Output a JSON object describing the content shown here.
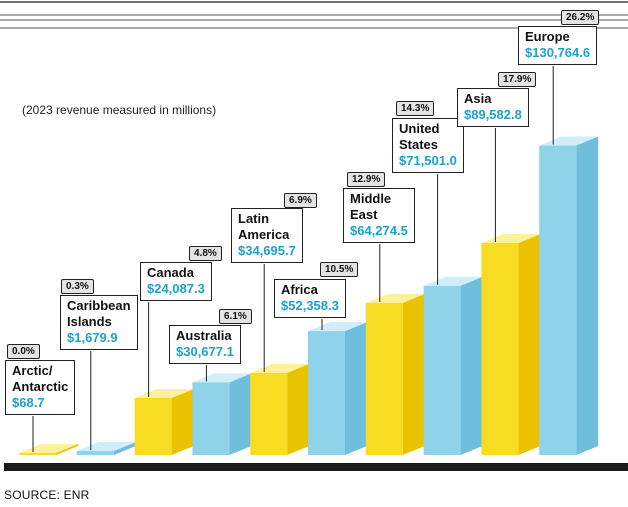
{
  "note": "(2023 revenue measured in millions)",
  "source": "SOURCE: ENR",
  "colors": {
    "yellow": "#f7d91e",
    "blue": "#8fd3ea",
    "value_text": "#1aa2cf",
    "baseline": "#1b1b1b"
  },
  "chart_data": {
    "type": "bar",
    "title": "",
    "subtitle": "(2023 revenue measured in millions)",
    "unit": "millions",
    "categories": [
      "Arctic/ Antarctic",
      "Caribbean Islands",
      "Canada",
      "Australia",
      "Latin America",
      "Africa",
      "Middle East",
      "United States",
      "Asia",
      "Europe"
    ],
    "values": [
      68.7,
      1679.9,
      24087.3,
      30677.1,
      34695.7,
      52358.3,
      64274.5,
      71501.0,
      89582.8,
      130764.6
    ],
    "value_labels": [
      "$68.7",
      "$1,679.9",
      "$24,087.3",
      "$30,677.1",
      "$34,695.7",
      "$52,358.3",
      "$64,274.5",
      "$71,501.0",
      "$89,582.8",
      "$130,764.6"
    ],
    "shares": [
      "0.0%",
      "0.3%",
      "4.8%",
      "6.1%",
      "6.9%",
      "10.5%",
      "12.9%",
      "14.3%",
      "17.9%",
      "26.2%"
    ],
    "bar_colors": [
      "yellow",
      "blue",
      "yellow",
      "blue",
      "yellow",
      "blue",
      "yellow",
      "blue",
      "yellow",
      "blue"
    ],
    "xlabel": "",
    "ylabel": "",
    "legend": "none",
    "grid": false
  }
}
